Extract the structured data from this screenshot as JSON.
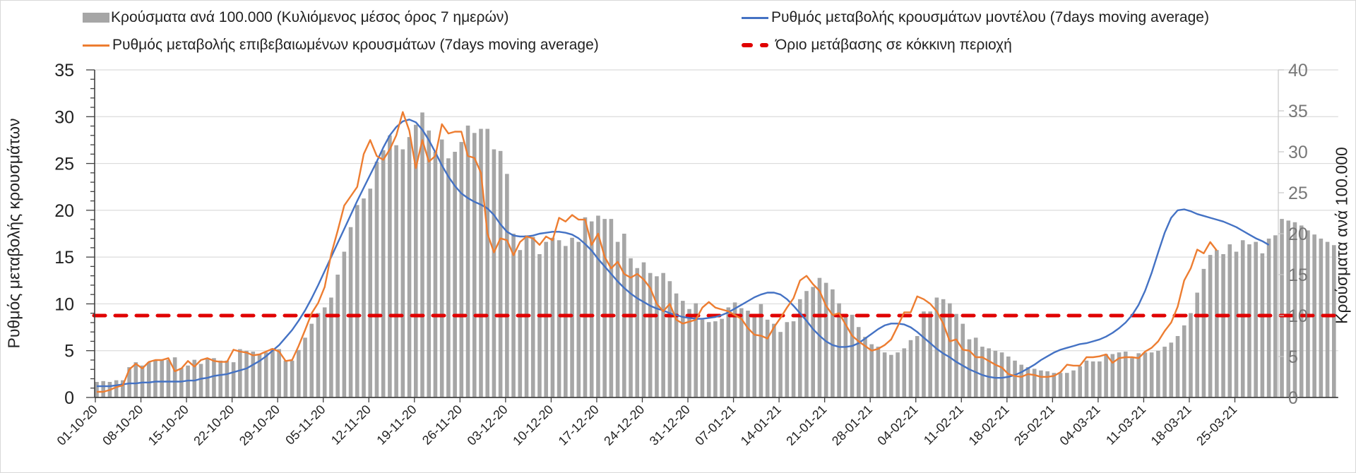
{
  "chart_data": {
    "type": "bar+line",
    "title": "",
    "legend": [
      {
        "key": "bars",
        "label": "Κρούσματα ανά 100.000 (Κυλιόμενος μέσος όρος 7 ημερών)",
        "color": "#a6a6a6"
      },
      {
        "key": "model",
        "label": "Ρυθμός μεταβολής κρουσμάτων μοντέλου (7days moving average)",
        "color": "#4472c4"
      },
      {
        "key": "confirmed",
        "label": "Ρυθμός μεταβολής επιβεβαιωμένων κρουσμάτων (7days moving average)",
        "color": "#ed7d31"
      },
      {
        "key": "threshold",
        "label": "Όριο μετάβασης σε κόκκινη περιοχή",
        "color": "#e00000"
      }
    ],
    "legend_position": "top",
    "ylabel_left": "Ρυθμός μεταβολής κρουσμάτων",
    "ylabel_right": "Κρούσματα ανά 100.000",
    "ylim_left": [
      0,
      35
    ],
    "ylim_right": [
      0,
      40
    ],
    "yticks_left": [
      "0",
      "5",
      "10",
      "15",
      "20",
      "25",
      "30",
      "35"
    ],
    "yticks_right": [
      "0",
      "5",
      "10",
      "15",
      "20",
      "25",
      "30",
      "35",
      "40"
    ],
    "x_start_date": "01-10-20",
    "x_tick_labels": [
      "01-10-20",
      "08-10-20",
      "15-10-20",
      "22-10-20",
      "29-10-20",
      "05-11-20",
      "12-11-20",
      "19-11-20",
      "26-11-20",
      "03-12-20",
      "10-12-20",
      "17-12-20",
      "24-12-20",
      "31-12-20",
      "07-01-21",
      "14-01-21",
      "21-01-21",
      "28-01-21",
      "04-02-21",
      "11-02-21",
      "18-02-21",
      "25-02-21",
      "04-03-21",
      "11-03-21",
      "18-03-21",
      "25-03-21"
    ],
    "x_tick_interval_days": 7,
    "grid": true,
    "threshold_right_axis": 10,
    "series": [
      {
        "name": "Κρούσματα ανά 100.000 (Κυλιόμενος μέσος όρος 7 ημερών)",
        "axis": "right",
        "type": "bar",
        "values": [
          1.9,
          2.0,
          1.9,
          2.1,
          2.1,
          3.7,
          4.3,
          3.9,
          4.3,
          4.6,
          4.6,
          4.6,
          4.9,
          3.6,
          3.9,
          4.6,
          4.1,
          4.7,
          4.8,
          4.5,
          4.5,
          4.3,
          5.9,
          5.7,
          5.6,
          5.3,
          5.5,
          6.0,
          5.9,
          4.5,
          4.5,
          5.8,
          7.3,
          9.0,
          10.3,
          11.0,
          12.2,
          15.0,
          17.8,
          20.8,
          23.5,
          24.3,
          25.5,
          28.8,
          30.2,
          32.0,
          30.8,
          30.3,
          31.8,
          33.3,
          34.8,
          32.6,
          30.0,
          31.5,
          29.2,
          30.0,
          31.2,
          33.2,
          32.3,
          32.8,
          32.8,
          30.3,
          30.1,
          27.3,
          20.0,
          18.0,
          19.8,
          19.6,
          17.5,
          19.0,
          19.5,
          19.2,
          18.5,
          19.5,
          19.0,
          22.0,
          21.5,
          22.2,
          21.8,
          21.8,
          19.0,
          20.0,
          17.0,
          15.8,
          16.5,
          15.2,
          14.8,
          15.2,
          14.2,
          12.7,
          11.8,
          10.8,
          11.5,
          9.5,
          9.2,
          9.3,
          9.6,
          11.0,
          11.6,
          10.9,
          10.6,
          10.2,
          11.4,
          9.5,
          9.0,
          8.0,
          9.2,
          9.3,
          12.0,
          13.0,
          13.5,
          14.6,
          14.0,
          13.2,
          11.5,
          10.0,
          10.1,
          8.6,
          7.4,
          6.5,
          6.2,
          5.5,
          5.2,
          5.5,
          6.0,
          7.0,
          7.5,
          10.5,
          10.5,
          12.2,
          12.0,
          11.5,
          10.2,
          9.0,
          7.1,
          7.3,
          6.2,
          6.0,
          5.7,
          5.5,
          5.0,
          4.5,
          4.0,
          3.7,
          3.5,
          3.3,
          3.2,
          3.0,
          3.0,
          3.0,
          3.3,
          3.8,
          4.5,
          4.4,
          4.4,
          5.3,
          5.3,
          5.5,
          5.6,
          4.8,
          5.4,
          5.5,
          5.5,
          5.7,
          6.2,
          6.7,
          7.5,
          8.8,
          10.3,
          12.8,
          15.7,
          17.4,
          18.0,
          17.5,
          18.7,
          17.8,
          19.2,
          18.7,
          19.0,
          17.6,
          19.4,
          19.8,
          21.8,
          21.6,
          21.4,
          21.0,
          20.4,
          19.9,
          19.4,
          19.0,
          18.6
        ]
      },
      {
        "name": "Ρυθμός μεταβολής επιβεβαιωμένων κρουσμάτων (7days moving average)",
        "axis": "left",
        "type": "line",
        "values": [
          0.6,
          0.6,
          0.8,
          1.1,
          1.3,
          3.0,
          3.6,
          3.1,
          3.8,
          4.0,
          4.0,
          4.2,
          2.8,
          3.1,
          3.9,
          3.3,
          4.0,
          4.2,
          3.9,
          3.8,
          3.8,
          5.1,
          4.9,
          4.8,
          4.5,
          4.6,
          4.9,
          5.2,
          4.9,
          3.9,
          4.0,
          5.5,
          7.2,
          9.0,
          10.1,
          11.8,
          15.3,
          17.8,
          20.5,
          21.5,
          22.5,
          26.0,
          27.5,
          25.8,
          25.4,
          26.5,
          28.0,
          30.5,
          28.5,
          24.5,
          27.5,
          25.2,
          25.8,
          29.2,
          28.2,
          28.4,
          28.4,
          25.8,
          25.6,
          24.0,
          17.5,
          15.5,
          17.0,
          16.8,
          15.2,
          16.6,
          17.2,
          17.0,
          16.3,
          17.2,
          16.8,
          19.2,
          18.8,
          19.5,
          19.0,
          19.0,
          16.3,
          17.5,
          15.0,
          13.8,
          14.5,
          13.2,
          12.8,
          13.2,
          12.6,
          11.7,
          10.0,
          9.2,
          10.0,
          8.3,
          7.9,
          8.1,
          8.3,
          9.6,
          10.2,
          9.6,
          9.4,
          9.2,
          8.8,
          8.4,
          7.4,
          6.7,
          6.6,
          6.3,
          7.5,
          8.5,
          9.6,
          10.6,
          12.5,
          13.0,
          12.1,
          11.4,
          9.8,
          8.8,
          9.0,
          7.8,
          6.6,
          6.0,
          5.5,
          5.0,
          5.2,
          5.6,
          6.2,
          7.6,
          9.1,
          9.1,
          10.8,
          10.5,
          10.0,
          9.2,
          7.9,
          6.0,
          6.2,
          5.1,
          5.0,
          4.3,
          4.3,
          3.9,
          3.5,
          3.2,
          2.5,
          2.3,
          2.2,
          2.5,
          2.4,
          2.2,
          2.2,
          2.3,
          2.7,
          3.5,
          3.4,
          3.4,
          4.3,
          4.3,
          4.4,
          4.6,
          3.7,
          4.2,
          4.3,
          4.3,
          4.2,
          4.9,
          5.3,
          6.0,
          7.1,
          8.0,
          9.7,
          12.5,
          13.8,
          15.8,
          15.4,
          16.6,
          15.7
        ]
      },
      {
        "name": "Ρυθμός μεταβολής κρουσμάτων μοντέλου (7days moving average)",
        "axis": "left",
        "type": "line",
        "values": [
          1.2,
          1.2,
          1.2,
          1.3,
          1.4,
          1.5,
          1.5,
          1.6,
          1.6,
          1.7,
          1.7,
          1.7,
          1.7,
          1.7,
          1.8,
          1.8,
          2.0,
          2.1,
          2.3,
          2.4,
          2.5,
          2.7,
          2.9,
          3.1,
          3.5,
          3.9,
          4.4,
          5.0,
          5.6,
          6.4,
          7.2,
          8.2,
          9.3,
          10.6,
          12.0,
          13.5,
          15.0,
          16.5,
          18.0,
          19.5,
          21.0,
          22.4,
          23.8,
          25.2,
          26.7,
          28.0,
          28.9,
          29.5,
          29.7,
          29.4,
          28.6,
          27.5,
          26.2,
          24.8,
          23.6,
          22.6,
          21.8,
          21.3,
          20.9,
          20.6,
          20.2,
          19.5,
          18.5,
          17.7,
          17.3,
          17.2,
          17.2,
          17.3,
          17.5,
          17.6,
          17.7,
          17.7,
          17.6,
          17.4,
          17.0,
          16.4,
          15.7,
          14.8,
          14.0,
          13.2,
          12.4,
          11.7,
          11.1,
          10.6,
          10.2,
          9.8,
          9.5,
          9.3,
          9.0,
          8.8,
          8.6,
          8.5,
          8.4,
          8.4,
          8.5,
          8.6,
          8.8,
          9.1,
          9.5,
          9.9,
          10.3,
          10.7,
          11.0,
          11.2,
          11.2,
          11.0,
          10.5,
          9.8,
          9.0,
          8.2,
          7.3,
          6.6,
          6.0,
          5.6,
          5.4,
          5.4,
          5.5,
          5.8,
          6.3,
          6.8,
          7.3,
          7.7,
          7.9,
          7.9,
          7.8,
          7.5,
          7.0,
          6.4,
          5.8,
          5.2,
          4.7,
          4.3,
          3.8,
          3.4,
          3.0,
          2.7,
          2.4,
          2.2,
          2.1,
          2.1,
          2.2,
          2.4,
          2.7,
          3.1,
          3.5,
          4.0,
          4.4,
          4.8,
          5.1,
          5.3,
          5.5,
          5.7,
          5.8,
          6.0,
          6.2,
          6.5,
          6.9,
          7.4,
          8.0,
          8.8,
          9.9,
          11.4,
          13.3,
          15.5,
          17.6,
          19.2,
          20.0,
          20.1,
          19.9,
          19.6,
          19.4,
          19.2,
          19.0,
          18.8,
          18.5,
          18.2,
          17.8,
          17.4,
          17.0,
          16.7,
          16.3
        ]
      }
    ]
  }
}
